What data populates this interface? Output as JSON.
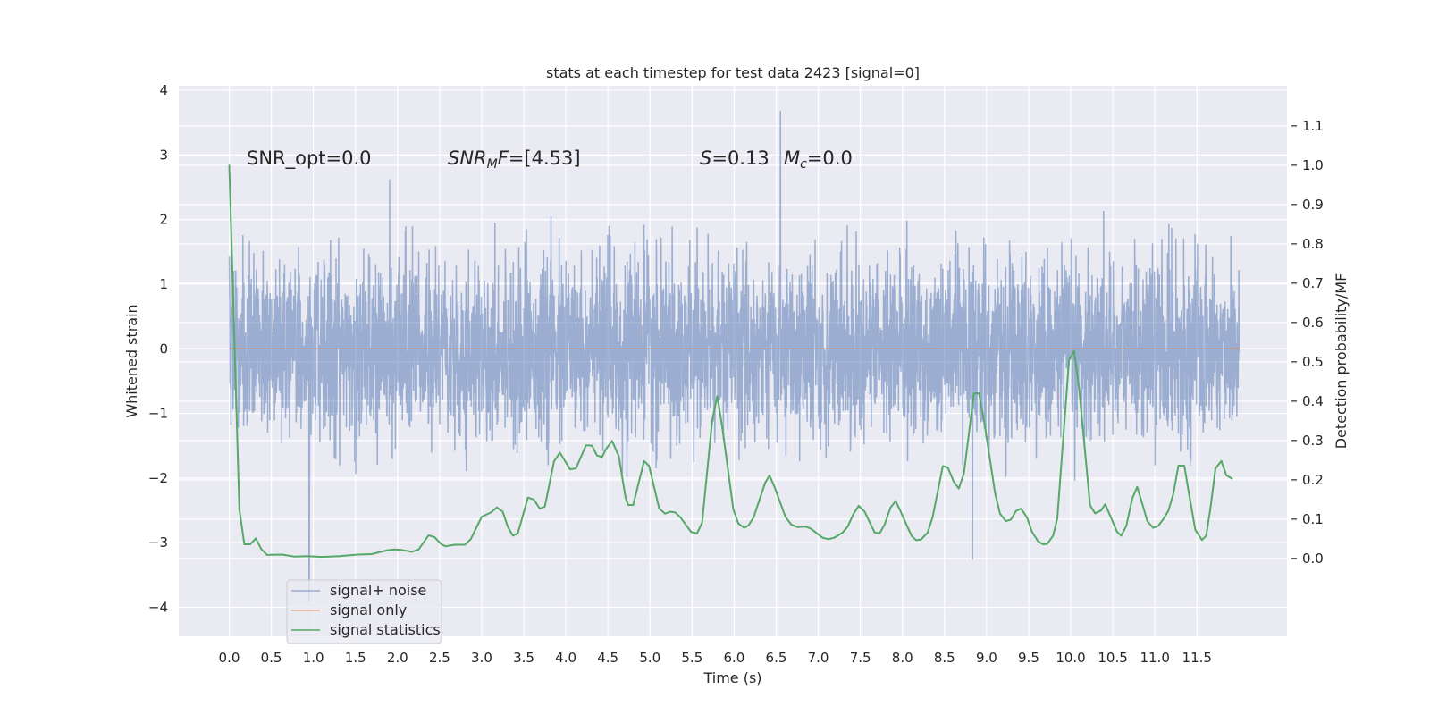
{
  "chart_data": {
    "type": "line",
    "title": "stats at each timestep for test data 2423 [signal=0]",
    "xlabel": "Time (s)",
    "ylabel_left": "Whitened strain",
    "ylabel_right": "Detection probability/MF",
    "xlim": [
      -0.6,
      12.57
    ],
    "ylim_left": [
      -4.45,
      4.07
    ],
    "ylim_right": [
      -0.198,
      1.202
    ],
    "x_ticks": [
      "0.0",
      "0.5",
      "1.0",
      "1.5",
      "2.0",
      "2.5",
      "3.0",
      "3.5",
      "4.0",
      "4.5",
      "5.0",
      "5.5",
      "6.0",
      "6.5",
      "7.0",
      "7.5",
      "8.0",
      "8.5",
      "9.0",
      "9.5",
      "10.0",
      "10.5",
      "11.0",
      "11.5"
    ],
    "y_left_ticks": [
      "−4",
      "−3",
      "−2",
      "−1",
      "0",
      "1",
      "2",
      "3",
      "4"
    ],
    "y_right_ticks": [
      "0.0",
      "0.1",
      "0.2",
      "0.3",
      "0.4",
      "0.5",
      "0.6",
      "0.7",
      "0.8",
      "0.9",
      "1.0",
      "1.1"
    ],
    "grid": true,
    "background": "#eaeaf2",
    "legend_placement": "lower-left",
    "annotations": {
      "snr_opt": "SNR_opt=0.0",
      "snr_mf_main": "SNR",
      "snr_mf_sub": "M",
      "snr_mf_tail": "F",
      "snr_mf_value": "=[4.53]",
      "s_symbol": "S",
      "s_value": "=0.13",
      "mc_symbol": "M",
      "mc_sub": "c",
      "mc_value": "=0.0"
    },
    "series": [
      {
        "name": "signal+ noise",
        "axis": "left",
        "color": "#4c72b0",
        "x_range": [
          0,
          12
        ],
        "typical_band": [
          -1.4,
          1.4
        ],
        "max": 3.68,
        "max_at": 6.55,
        "min": -3.9,
        "min_at": 0.95
      },
      {
        "name": "signal only",
        "axis": "left",
        "color": "#dd8452",
        "x": [
          0,
          12
        ],
        "y": [
          0,
          0
        ]
      },
      {
        "name": "signal statistics",
        "axis": "right",
        "color": "#55a868",
        "x": [
          0,
          0.12,
          0.18,
          0.25,
          0.315,
          0.38,
          0.45,
          0.63,
          0.77,
          0.94,
          1.09,
          1.32,
          1.53,
          1.69,
          1.88,
          1.97,
          2.04,
          2.17,
          2.25,
          2.37,
          2.44,
          2.52,
          2.57,
          2.68,
          2.8,
          2.87,
          3.0,
          3.11,
          3.18,
          3.25,
          3.31,
          3.37,
          3.43,
          3.55,
          3.62,
          3.69,
          3.75,
          3.86,
          3.93,
          4.05,
          4.12,
          4.24,
          4.31,
          4.37,
          4.43,
          4.48,
          4.55,
          4.63,
          4.71,
          4.74,
          4.8,
          4.93,
          4.99,
          5.11,
          5.18,
          5.24,
          5.3,
          5.36,
          5.49,
          5.56,
          5.62,
          5.74,
          5.8,
          5.86,
          5.99,
          6.05,
          6.12,
          6.17,
          6.23,
          6.37,
          6.42,
          6.48,
          6.61,
          6.68,
          6.75,
          6.85,
          6.91,
          7.05,
          7.12,
          7.19,
          7.29,
          7.35,
          7.42,
          7.48,
          7.55,
          7.67,
          7.73,
          7.79,
          7.86,
          7.92,
          7.98,
          8.06,
          8.11,
          8.16,
          8.22,
          8.3,
          8.36,
          8.48,
          8.54,
          8.61,
          8.67,
          8.73,
          8.85,
          8.91,
          8.98,
          9.1,
          9.16,
          9.23,
          9.29,
          9.35,
          9.41,
          9.48,
          9.54,
          9.61,
          9.67,
          9.72,
          9.79,
          9.84,
          9.98,
          10.04,
          10.1,
          10.23,
          10.29,
          10.36,
          10.41,
          10.47,
          10.55,
          10.6,
          10.66,
          10.73,
          10.79,
          10.85,
          10.91,
          10.98,
          11.04,
          11.1,
          11.16,
          11.22,
          11.28,
          11.35,
          11.41,
          11.48,
          11.56,
          11.61,
          11.66,
          11.72,
          11.79,
          11.85,
          11.92
        ],
        "y": [
          1.0,
          0.125,
          0.036,
          0.036,
          0.051,
          0.024,
          0.009,
          0.01,
          0.005,
          0.006,
          0.004,
          0.006,
          0.01,
          0.011,
          0.021,
          0.023,
          0.022,
          0.017,
          0.023,
          0.059,
          0.054,
          0.036,
          0.031,
          0.035,
          0.035,
          0.049,
          0.106,
          0.117,
          0.13,
          0.119,
          0.081,
          0.058,
          0.064,
          0.155,
          0.15,
          0.127,
          0.132,
          0.247,
          0.269,
          0.227,
          0.229,
          0.288,
          0.287,
          0.262,
          0.258,
          0.279,
          0.299,
          0.26,
          0.154,
          0.136,
          0.136,
          0.248,
          0.235,
          0.127,
          0.114,
          0.119,
          0.117,
          0.105,
          0.067,
          0.064,
          0.091,
          0.352,
          0.413,
          0.333,
          0.125,
          0.089,
          0.078,
          0.084,
          0.104,
          0.193,
          0.211,
          0.182,
          0.106,
          0.086,
          0.08,
          0.081,
          0.076,
          0.053,
          0.049,
          0.053,
          0.066,
          0.081,
          0.114,
          0.134,
          0.119,
          0.066,
          0.064,
          0.087,
          0.13,
          0.146,
          0.119,
          0.08,
          0.057,
          0.047,
          0.048,
          0.066,
          0.106,
          0.235,
          0.231,
          0.195,
          0.178,
          0.216,
          0.42,
          0.42,
          0.337,
          0.167,
          0.114,
          0.095,
          0.099,
          0.121,
          0.127,
          0.104,
          0.068,
          0.044,
          0.036,
          0.037,
          0.058,
          0.102,
          0.504,
          0.528,
          0.432,
          0.135,
          0.115,
          0.122,
          0.138,
          0.108,
          0.068,
          0.058,
          0.083,
          0.152,
          0.182,
          0.139,
          0.095,
          0.078,
          0.083,
          0.1,
          0.121,
          0.165,
          0.236,
          0.236,
          0.159,
          0.073,
          0.047,
          0.058,
          0.127,
          0.229,
          0.248,
          0.211,
          0.203
        ]
      }
    ]
  }
}
